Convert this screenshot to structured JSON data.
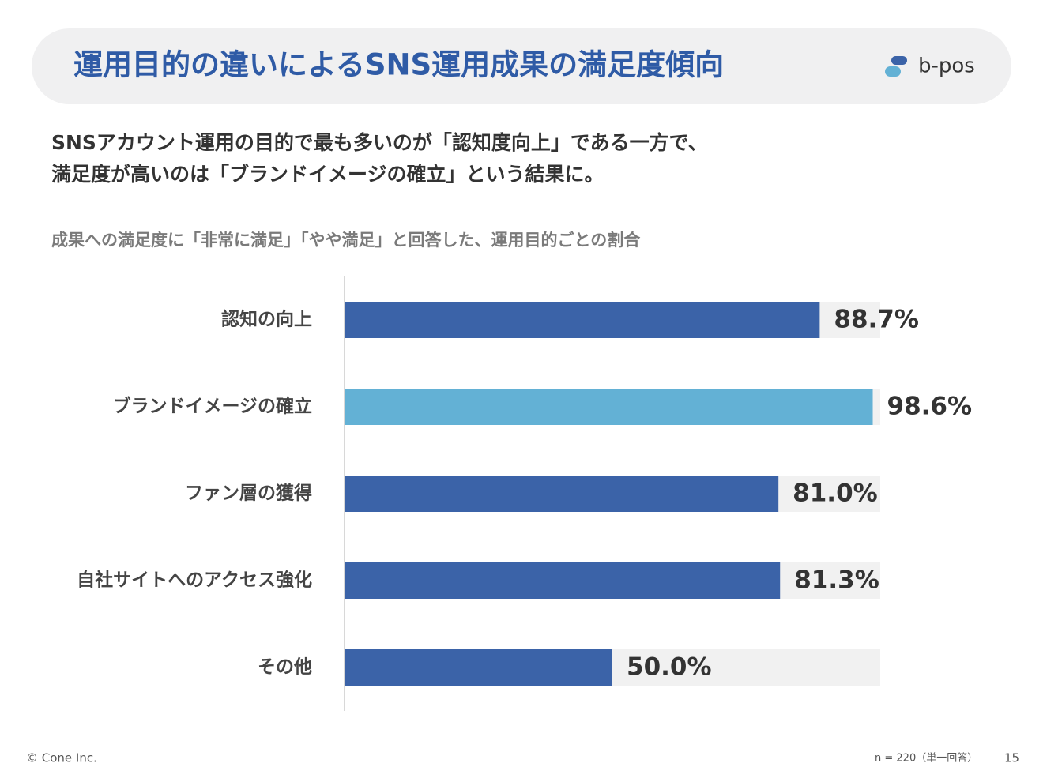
{
  "header": {
    "title": "運用目的の違いによるSNS運用成果の満足度傾向",
    "logo": "b-pos"
  },
  "lead": [
    "SNSアカウント運用の目的で最も多いのが「認知度向上」である一方で、",
    "満足度が高いのは「ブランドイメージの確立」という結果に。"
  ],
  "chart_data": {
    "type": "bar",
    "orientation": "horizontal",
    "subtitle": "成果への満足度に「非常に満足」「やや満足」と回答した、運用目的ごとの割合",
    "categories": [
      "認知の向上",
      "ブランドイメージの確立",
      "ファン層の獲得",
      "自社サイトへのアクセス強化",
      "その他"
    ],
    "values": [
      88.7,
      98.6,
      81.0,
      81.3,
      50.0
    ],
    "value_labels": [
      "88.7%",
      "98.6%",
      "81.0%",
      "81.3%",
      "50.0%"
    ],
    "colors": [
      "#3b63a8",
      "#63b1d5",
      "#3b63a8",
      "#3b63a8",
      "#3b63a8"
    ],
    "xlim": [
      0,
      100
    ]
  },
  "footer": {
    "copyright": "© Cone Inc.",
    "note": "n = 220（単一回答）",
    "page": "15"
  }
}
